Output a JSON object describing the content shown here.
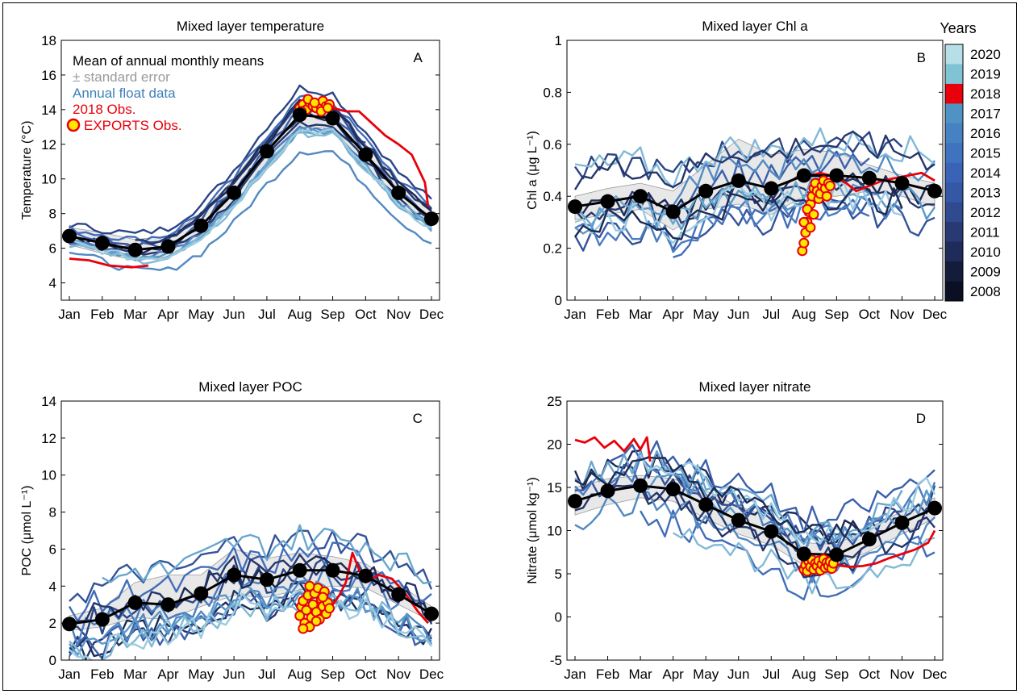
{
  "figure": {
    "colorbar_title": "Years"
  },
  "chart_data": [
    {
      "id": "A",
      "type": "line",
      "title": "Mixed layer temperature",
      "ylabel": "Temperature (°C)",
      "letter": "A",
      "categories": [
        "Jan",
        "Feb",
        "Mar",
        "Apr",
        "May",
        "Jun",
        "Jul",
        "Aug",
        "Sep",
        "Oct",
        "Nov",
        "Dec"
      ],
      "ylim": [
        3,
        18
      ],
      "yticks": [
        4,
        6,
        8,
        10,
        12,
        14,
        16,
        18
      ],
      "legend": [
        {
          "label": "Mean of annual monthly means",
          "color": "#000000"
        },
        {
          "label": "± standard error",
          "color": "#9a9a9a"
        },
        {
          "label": "Annual float data",
          "color": "#3f7fb8"
        },
        {
          "label": "2018 Obs.",
          "color": "#e8000b"
        },
        {
          "label": "EXPORTS Obs.",
          "color": "#e8000b",
          "marker": "yellow-circle"
        }
      ],
      "mean": [
        6.7,
        6.3,
        5.9,
        6.1,
        7.3,
        9.2,
        11.6,
        13.7,
        13.5,
        11.4,
        9.2,
        7.7
      ],
      "se_upper": [
        7.2,
        6.9,
        6.5,
        6.7,
        8.0,
        10.0,
        12.4,
        14.4,
        14.1,
        12.0,
        9.8,
        8.3
      ],
      "se_lower": [
        6.2,
        5.7,
        5.3,
        5.5,
        6.6,
        8.4,
        10.8,
        13.0,
        12.9,
        10.8,
        8.6,
        7.1
      ],
      "base": [
        6.7,
        6.3,
        5.9,
        6.1,
        7.3,
        9.2,
        11.6,
        13.7,
        13.5,
        11.4,
        9.2,
        7.7
      ],
      "obs2018": {
        "x": [
          0,
          0.6,
          1.2,
          1.9,
          2.4,
          7.2,
          7.6,
          8.0,
          8.4,
          8.8,
          9.2,
          9.6,
          10.0,
          10.4,
          10.8,
          10.9
        ],
        "y": [
          5.4,
          5.3,
          5.0,
          4.9,
          5.0,
          14.2,
          14.0,
          14.1,
          13.9,
          13.9,
          13.2,
          12.5,
          12.0,
          11.4,
          9.8,
          8.4
        ]
      },
      "exports": {
        "x": [
          7.0,
          7.1,
          7.2,
          7.3,
          7.4,
          7.5,
          7.6,
          7.7,
          7.8,
          7.9,
          7.05,
          7.25,
          7.45,
          7.65,
          7.85
        ],
        "y": [
          14.1,
          14.3,
          14.0,
          14.4,
          14.2,
          14.1,
          14.3,
          14.5,
          14.2,
          14.3,
          13.9,
          14.6,
          14.4,
          13.9,
          14.1
        ]
      }
    },
    {
      "id": "B",
      "type": "line",
      "title": "Mixed layer Chl a",
      "ylabel": "Chl a (μg L⁻¹)",
      "letter": "B",
      "categories": [
        "Jan",
        "Feb",
        "Mar",
        "Apr",
        "May",
        "Jun",
        "Jul",
        "Aug",
        "Sep",
        "Oct",
        "Nov",
        "Dec"
      ],
      "ylim": [
        0,
        1
      ],
      "yticks": [
        0,
        0.2,
        0.4,
        0.6,
        0.8,
        1
      ],
      "mean": [
        0.36,
        0.38,
        0.4,
        0.34,
        0.42,
        0.46,
        0.43,
        0.48,
        0.48,
        0.47,
        0.45,
        0.42
      ],
      "se_upper": [
        0.4,
        0.43,
        0.45,
        0.42,
        0.52,
        0.62,
        0.56,
        0.58,
        0.57,
        0.52,
        0.48,
        0.45
      ],
      "se_lower": [
        0.31,
        0.33,
        0.35,
        0.27,
        0.35,
        0.37,
        0.33,
        0.4,
        0.4,
        0.42,
        0.4,
        0.36
      ],
      "base": [
        0.36,
        0.38,
        0.4,
        0.34,
        0.42,
        0.46,
        0.43,
        0.48,
        0.48,
        0.47,
        0.45,
        0.42
      ],
      "obs2018": {
        "x": [
          7.0,
          7.2,
          7.5,
          7.8,
          8.0,
          8.3,
          8.6,
          9.0,
          9.4,
          9.8,
          10.2,
          10.6,
          11.0
        ],
        "y": [
          0.49,
          0.48,
          0.49,
          0.48,
          0.47,
          0.45,
          0.42,
          0.44,
          0.46,
          0.47,
          0.48,
          0.49,
          0.46
        ]
      },
      "exports": {
        "x": [
          6.95,
          7.0,
          7.05,
          7.1,
          7.15,
          7.2,
          7.25,
          7.3,
          7.35,
          7.4,
          7.45,
          7.5,
          7.55,
          7.6,
          7.65,
          7.7,
          7.75,
          7.8,
          7.0,
          7.1,
          7.2,
          7.3
        ],
        "y": [
          0.19,
          0.22,
          0.26,
          0.3,
          0.34,
          0.37,
          0.4,
          0.43,
          0.45,
          0.42,
          0.39,
          0.41,
          0.44,
          0.46,
          0.43,
          0.4,
          0.45,
          0.44,
          0.3,
          0.35,
          0.28,
          0.33
        ]
      }
    },
    {
      "id": "C",
      "type": "line",
      "title": "Mixed layer POC",
      "ylabel": "POC (μmol L⁻¹)",
      "letter": "C",
      "categories": [
        "Jan",
        "Feb",
        "Mar",
        "Apr",
        "May",
        "Jun",
        "Jul",
        "Aug",
        "Sep",
        "Oct",
        "Nov",
        "Dec"
      ],
      "ylim": [
        0,
        14
      ],
      "yticks": [
        0,
        2,
        4,
        6,
        8,
        10,
        12,
        14
      ],
      "mean": [
        1.95,
        2.2,
        3.1,
        3.0,
        3.6,
        4.6,
        4.35,
        4.85,
        4.85,
        4.55,
        3.55,
        2.5
      ],
      "se_upper": [
        2.4,
        2.8,
        4.2,
        4.6,
        4.6,
        6.0,
        5.5,
        5.8,
        5.6,
        5.2,
        4.1,
        2.9
      ],
      "se_lower": [
        1.6,
        1.8,
        2.3,
        2.2,
        2.9,
        3.5,
        3.4,
        3.8,
        4.0,
        3.9,
        3.0,
        2.1
      ],
      "base": [
        1.95,
        2.2,
        3.1,
        3.0,
        3.6,
        4.6,
        4.35,
        4.85,
        4.85,
        4.55,
        3.55,
        2.5
      ],
      "obs2018": {
        "x": [
          8.0,
          8.2,
          8.4,
          8.6,
          8.8,
          9.0,
          9.4,
          9.8,
          10.2,
          10.6,
          10.9
        ],
        "y": [
          3.0,
          3.5,
          4.2,
          5.8,
          4.9,
          4.2,
          4.6,
          4.4,
          3.6,
          2.6,
          2.0
        ]
      },
      "exports": {
        "x": [
          7.0,
          7.05,
          7.1,
          7.15,
          7.2,
          7.25,
          7.3,
          7.35,
          7.4,
          7.45,
          7.5,
          7.55,
          7.6,
          7.65,
          7.7,
          7.75,
          7.8,
          7.85,
          7.9,
          7.1,
          7.3,
          7.5,
          7.7
        ],
        "y": [
          2.4,
          2.9,
          3.2,
          2.0,
          2.7,
          3.5,
          1.8,
          2.3,
          3.0,
          3.6,
          2.6,
          3.9,
          2.2,
          3.3,
          2.9,
          3.7,
          2.5,
          3.1,
          2.8,
          1.7,
          4.0,
          2.1,
          3.4
        ]
      }
    },
    {
      "id": "D",
      "type": "line",
      "title": "Mixed layer nitrate",
      "ylabel": "Nitrate (μmol kg⁻¹)",
      "letter": "D",
      "categories": [
        "Jan",
        "Feb",
        "Mar",
        "Apr",
        "May",
        "Jun",
        "Jul",
        "Aug",
        "Sep",
        "Oct",
        "Nov",
        "Dec"
      ],
      "ylim": [
        -5,
        25
      ],
      "yticks": [
        -5,
        0,
        5,
        10,
        15,
        20,
        25
      ],
      "mean": [
        13.4,
        14.6,
        15.2,
        14.8,
        13.0,
        11.2,
        9.9,
        7.3,
        7.2,
        9.0,
        10.9,
        12.6
      ],
      "se_upper": [
        15.0,
        16.0,
        16.4,
        16.0,
        14.6,
        12.8,
        11.5,
        8.6,
        8.4,
        10.4,
        12.2,
        13.8
      ],
      "se_lower": [
        11.8,
        13.0,
        13.8,
        13.4,
        11.4,
        9.6,
        8.3,
        6.0,
        6.0,
        7.6,
        9.6,
        11.4
      ],
      "base": [
        13.4,
        14.6,
        15.2,
        14.8,
        13.0,
        11.2,
        9.9,
        7.3,
        7.2,
        9.0,
        10.9,
        12.6
      ],
      "obs2018": {
        "x": [
          0,
          0.3,
          0.6,
          0.9,
          1.2,
          1.5,
          1.8,
          2.0,
          2.2,
          2.3,
          8.0,
          8.4,
          8.8,
          9.2,
          9.6,
          10.0,
          10.4,
          10.8,
          11.0
        ],
        "y": [
          20.5,
          20.2,
          20.8,
          19.6,
          20.4,
          19.2,
          20.6,
          19.4,
          20.8,
          18.0,
          6.0,
          5.8,
          5.9,
          6.2,
          6.8,
          7.3,
          7.8,
          8.6,
          10.0
        ]
      },
      "exports": {
        "x": [
          7.0,
          7.05,
          7.1,
          7.15,
          7.2,
          7.25,
          7.3,
          7.35,
          7.4,
          7.45,
          7.5,
          7.55,
          7.6,
          7.65,
          7.7,
          7.75,
          7.8,
          7.85,
          7.9
        ],
        "y": [
          5.5,
          6.0,
          5.3,
          6.4,
          5.8,
          6.6,
          5.5,
          6.2,
          5.9,
          6.5,
          5.4,
          6.1,
          6.7,
          5.7,
          6.3,
          5.9,
          6.4,
          5.6,
          6.2
        ]
      }
    }
  ],
  "colorbar": {
    "years": [
      "2008",
      "2009",
      "2010",
      "2011",
      "2012",
      "2013",
      "2014",
      "2015",
      "2016",
      "2017",
      "2018",
      "2019",
      "2020"
    ],
    "colors": [
      "#0a0f24",
      "#141c3c",
      "#1f2c59",
      "#283a74",
      "#2f4a8f",
      "#3558a6",
      "#3a63b7",
      "#3f73bf",
      "#4682c2",
      "#4f93c5",
      "#e8000b",
      "#7fc3d4",
      "#b7dfe8"
    ]
  }
}
